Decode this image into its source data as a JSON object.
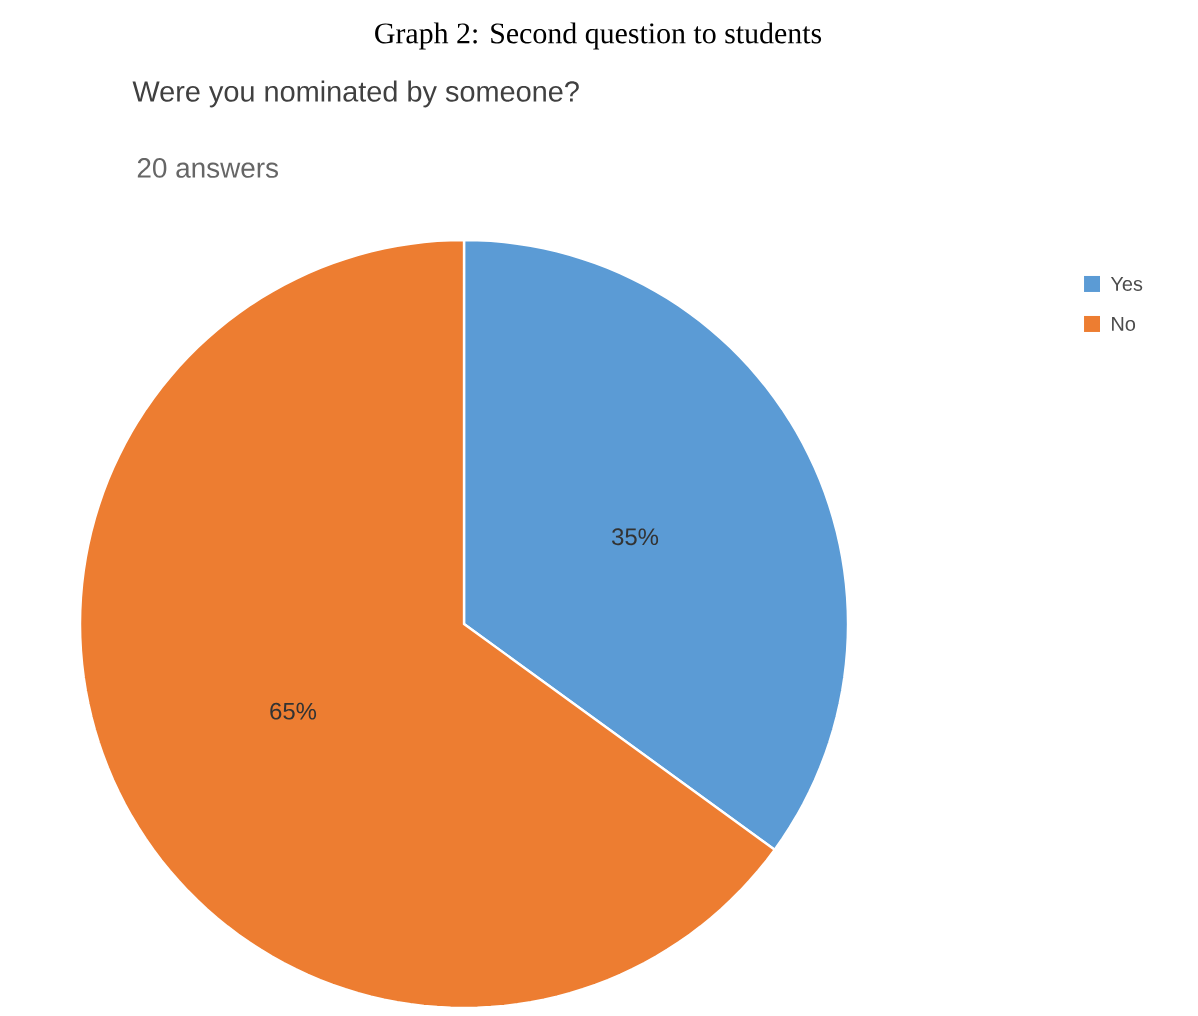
{
  "chart_data": {
    "type": "pie",
    "annotations": [
      "Graph 2: Second question to students"
    ],
    "title": "Were you nominated by someone?",
    "subtitle": "20 answers",
    "categories": [
      "Yes",
      "No"
    ],
    "values": [
      35,
      65
    ],
    "colors": [
      "#5b9bd5",
      "#ed7d31"
    ],
    "value_labels": [
      "35%",
      "65%"
    ],
    "legend": "top right"
  }
}
